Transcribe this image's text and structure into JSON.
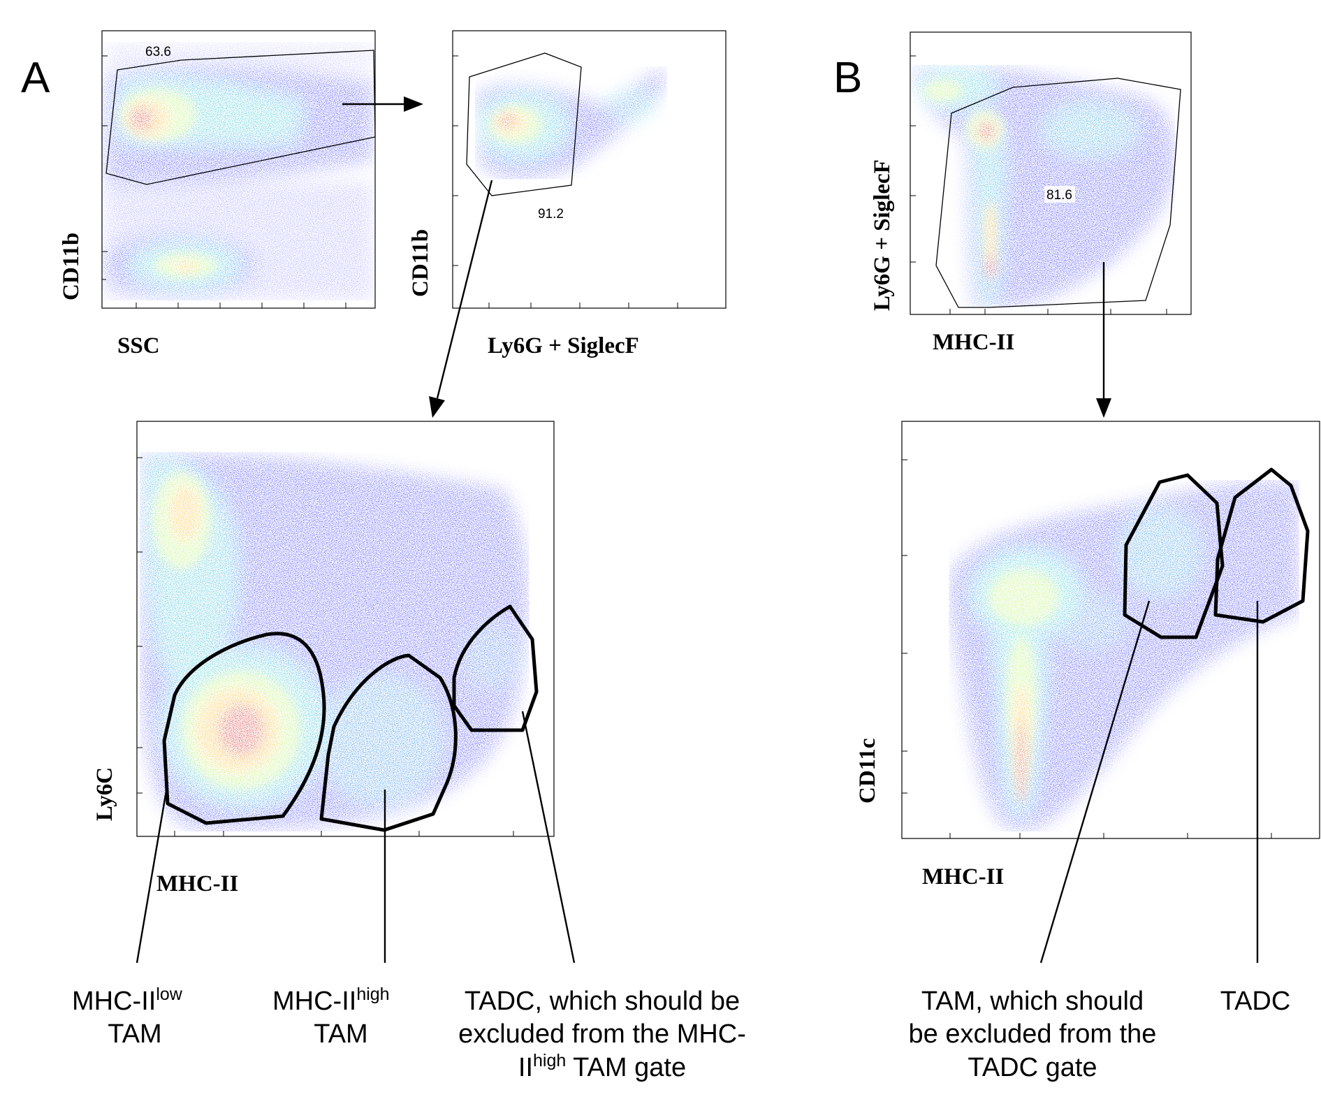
{
  "panels": {
    "A": {
      "letter": "A"
    },
    "B": {
      "letter": "B"
    }
  },
  "plots": {
    "a1": {
      "xlabel": "SSC",
      "ylabel": "CD11b",
      "gate_value": "63.6"
    },
    "a2": {
      "xlabel": "Ly6G + SiglecF",
      "ylabel": "CD11b",
      "gate_value": "91.2"
    },
    "a3": {
      "xlabel": "MHC-II",
      "ylabel": "Ly6C"
    },
    "b1": {
      "xlabel": "MHC-II",
      "ylabel": "Ly6G + SiglecF",
      "gate_value": "81.6"
    },
    "b2": {
      "xlabel": "MHC-II",
      "ylabel": "CD11c"
    }
  },
  "captions": {
    "mhc_low_tam": {
      "line1_base": "MHC-II",
      "line1_sup": "low",
      "line2": "TAM"
    },
    "mhc_high_tam": {
      "line1_base": "MHC-II",
      "line1_sup": "high",
      "line2": "TAM"
    },
    "tadc_excluded": {
      "line1": "TADC, which should be",
      "line2": "excluded from the MHC-",
      "line3_base": "II",
      "line3_sup": "high",
      "line3_rest": " TAM gate"
    },
    "tam_excluded": {
      "line1": "TAM, which should",
      "line2": "be excluded from the",
      "line3": "TADC gate"
    },
    "tadc": {
      "line1": "TADC"
    }
  },
  "colors": {
    "density_low": "#1a1aff",
    "density_mid": "#22d3c8",
    "density_high1": "#a8f04a",
    "density_high2": "#ffb000",
    "density_peak": "#d01010"
  }
}
